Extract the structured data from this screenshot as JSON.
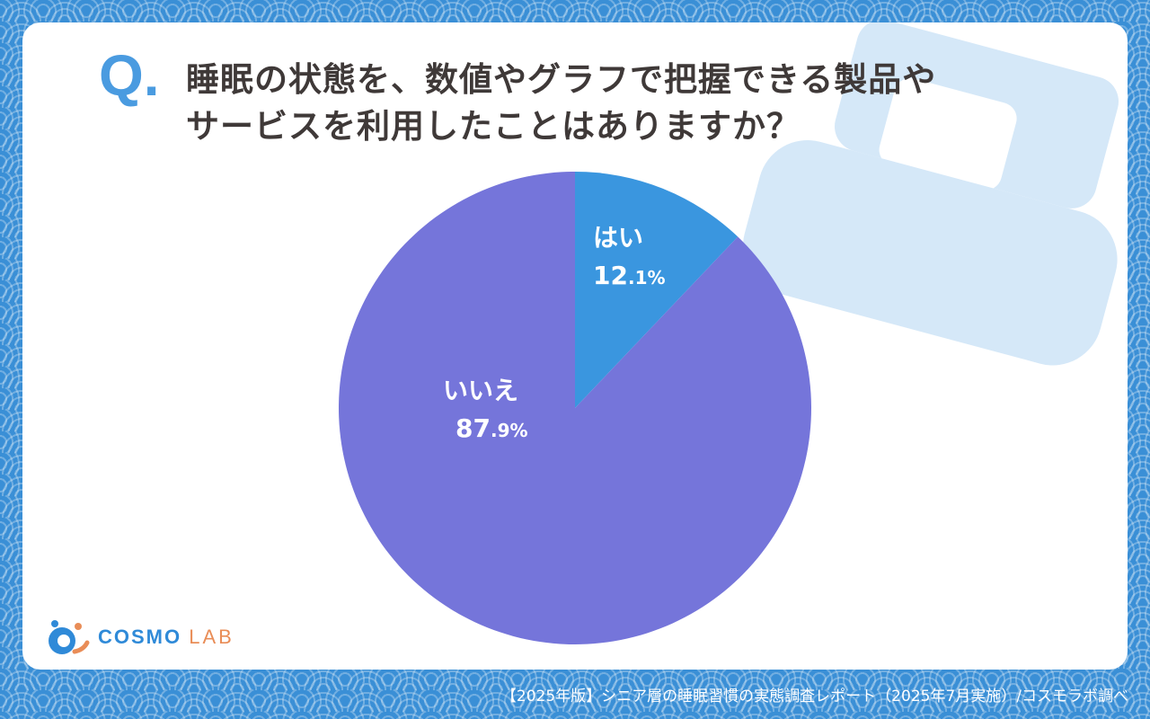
{
  "question": {
    "mark": "Q",
    "line1": "睡眠の状態を、数値やグラフで把握できる製品や",
    "line2": "サービスを利用したことはありますか？"
  },
  "chart_data": {
    "type": "pie",
    "slices": [
      {
        "label": "はい",
        "value": 12.1,
        "pct_main": "12",
        "pct_dec": ".1%",
        "color": "#3a96df"
      },
      {
        "label": "いいえ",
        "value": 87.9,
        "pct_main": "87",
        "pct_dec": ".9%",
        "color": "#7575da"
      }
    ],
    "start": "12 o'clock",
    "direction": "clockwise"
  },
  "brand": {
    "name": "COSMO",
    "suffix": "LAB"
  },
  "footer": "【2025年版】シニア層の睡眠習慣の実態調査レポート（2025年7月実施）/コスモラボ調べ",
  "colors": {
    "accent": "#4a9be0",
    "illustration": "#d5e8f8",
    "text": "#3f3938",
    "background": "#3a8fd6"
  }
}
